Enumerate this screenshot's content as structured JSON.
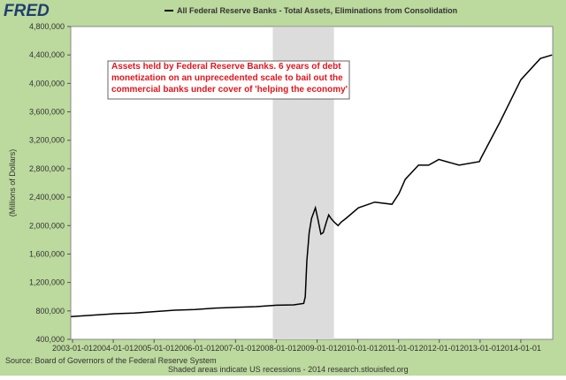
{
  "logo": "FRED",
  "chart_data": {
    "type": "line",
    "title": "All Federal Reserve Banks - Total Assets, Eliminations from Consolidation",
    "ylabel": "(Millions of Dollars)",
    "annotation": [
      "Assets held by Federal Reserve Banks. 6 years of debt",
      "monetization on an unprecedented scale to bail out the",
      "commercial banks under cover of 'helping the economy'"
    ],
    "source": "Source: Board of Governors of the Federal Reserve System",
    "footer": "Shaded areas indicate US recessions - 2014 research.stlouisfed.org",
    "recessions": [
      {
        "start": "2007-12-01",
        "end": "2009-06-01"
      }
    ],
    "xlim": [
      "2002-12-16",
      "2014-10-14"
    ],
    "xticks": [
      "2003-01-01",
      "2004-01-01",
      "2005-01-01",
      "2006-01-01",
      "2007-01-01",
      "2008-01-01",
      "2009-01-01",
      "2010-01-01",
      "2011-01-01",
      "2012-01-01",
      "2013-01-01",
      "2014-01-01"
    ],
    "ylim": [
      400000,
      4800000
    ],
    "yticks": [
      {
        "value": 400000,
        "label": "400,000"
      },
      {
        "value": 800000,
        "label": "800,000"
      },
      {
        "value": 1200000,
        "label": "1,200,000"
      },
      {
        "value": 1600000,
        "label": "1,600,000"
      },
      {
        "value": 2000000,
        "label": "2,000,000"
      },
      {
        "value": 2400000,
        "label": "2,400,000"
      },
      {
        "value": 2800000,
        "label": "2,800,000"
      },
      {
        "value": 3200000,
        "label": "3,200,000"
      },
      {
        "value": 3600000,
        "label": "3,600,000"
      },
      {
        "value": 4000000,
        "label": "4,000,000"
      },
      {
        "value": 4400000,
        "label": "4,400,000"
      },
      {
        "value": 4800000,
        "label": "4,800,000"
      }
    ],
    "x": [
      "2002-12-18",
      "2003-07-02",
      "2004-01-07",
      "2004-07-07",
      "2005-01-05",
      "2005-07-06",
      "2006-01-04",
      "2006-07-05",
      "2007-01-03",
      "2007-07-04",
      "2008-01-02",
      "2008-06-04",
      "2008-09-03",
      "2008-09-17",
      "2008-10-01",
      "2008-10-22",
      "2008-11-12",
      "2008-12-17",
      "2009-01-07",
      "2009-02-04",
      "2009-02-25",
      "2009-03-25",
      "2009-04-15",
      "2009-05-06",
      "2009-06-03",
      "2009-07-08",
      "2009-08-05",
      "2009-09-16",
      "2010-01-06",
      "2010-06-02",
      "2010-11-03",
      "2011-01-05",
      "2011-03-02",
      "2011-06-29",
      "2011-09-28",
      "2011-12-28",
      "2012-06-27",
      "2012-12-26",
      "2013-01-09",
      "2013-06-26",
      "2014-01-01",
      "2014-06-25",
      "2014-10-08"
    ],
    "series": [
      {
        "name": "All Federal Reserve Banks - Total Assets, Eliminations from Consolidation",
        "color": "#000000",
        "values": [
          720000,
          740000,
          760000,
          770000,
          790000,
          810000,
          820000,
          840000,
          850000,
          860000,
          880000,
          885000,
          905000,
          1000000,
          1500000,
          1900000,
          2100000,
          2250000,
          2100000,
          1880000,
          1900000,
          2050000,
          2150000,
          2100000,
          2050000,
          2000000,
          2050000,
          2100000,
          2250000,
          2330000,
          2300000,
          2450000,
          2650000,
          2850000,
          2850000,
          2930000,
          2850000,
          2900000,
          2950000,
          3450000,
          4050000,
          4350000,
          4400000
        ]
      }
    ]
  }
}
